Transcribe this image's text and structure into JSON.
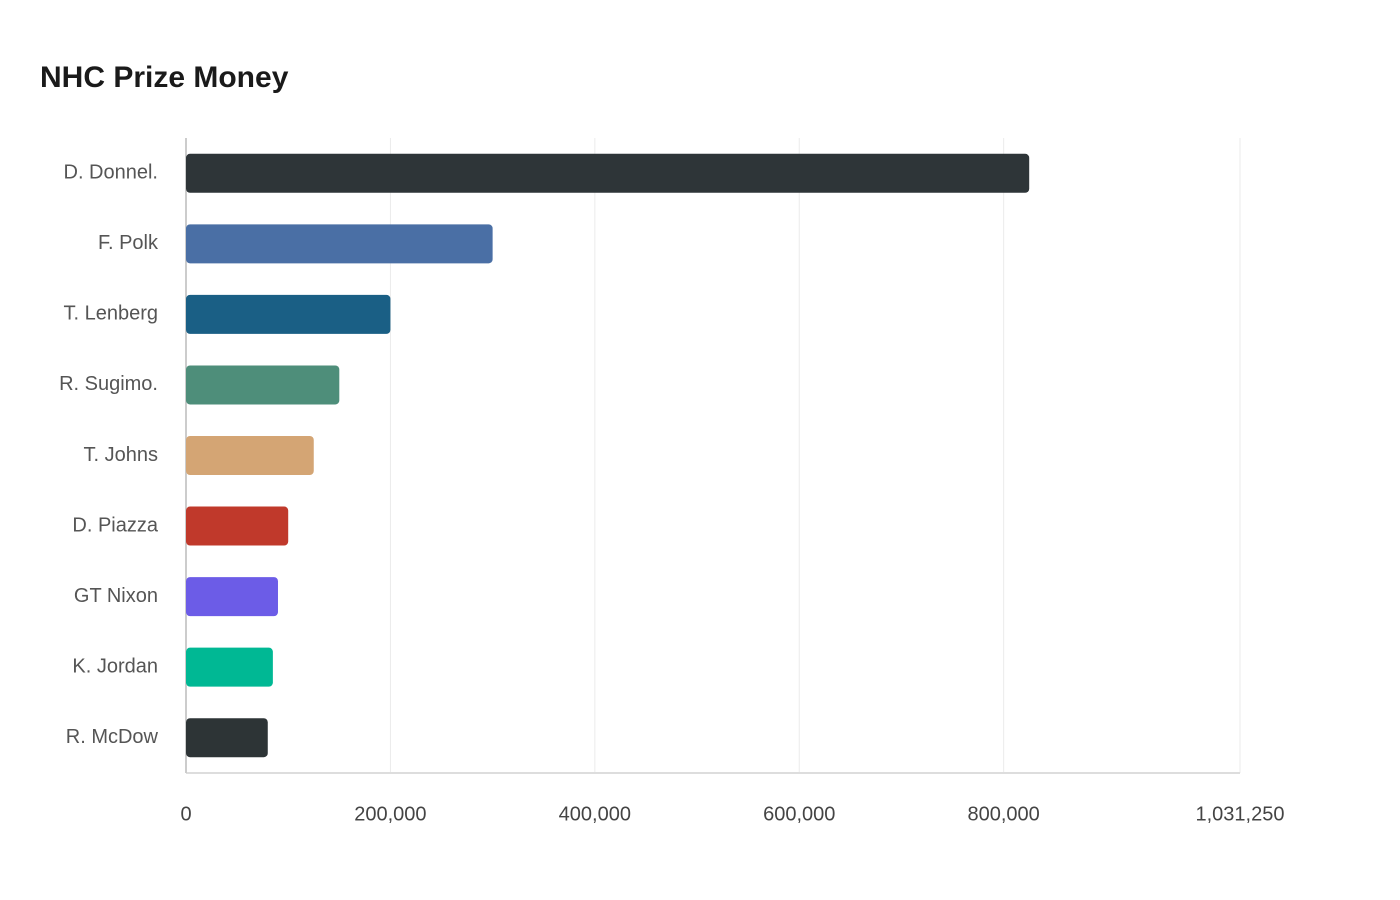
{
  "chart_data": {
    "type": "bar",
    "orientation": "horizontal",
    "title": "NHC Prize Money",
    "categories": [
      "D. Donnel.",
      "F. Polk",
      "T. Lenberg",
      "R. Sugimo.",
      "T. Johns",
      "D. Piazza",
      "GT Nixon",
      "K. Jordan",
      "R. McDow"
    ],
    "values": [
      825000,
      300000,
      200000,
      150000,
      125000,
      100000,
      90000,
      85000,
      80000
    ],
    "colors": [
      "#2e3538",
      "#4a6fa5",
      "#1a5f85",
      "#4e8e7a",
      "#d4a574",
      "#c0392b",
      "#6c5ce7",
      "#00b894",
      "#2d3436"
    ],
    "xlim": [
      0,
      1031250
    ],
    "xticks": [
      0,
      {
        "value": 200000,
        "label": "200,000"
      },
      {
        "value": 400000,
        "label": "400,000"
      },
      {
        "value": 600000,
        "label": "600,000"
      },
      {
        "value": 800000,
        "label": "800,000"
      },
      {
        "value": 1031250,
        "label": "1,031,250"
      }
    ],
    "grid": true
  }
}
